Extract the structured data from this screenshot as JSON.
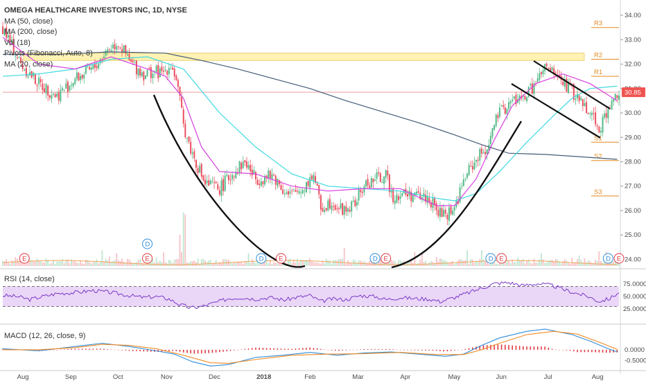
{
  "chart_data": {
    "type": "candlestick",
    "title": "OMEGA HEALTHCARE INVESTORS INC, 1D, NYSE",
    "indicators": [
      "MA (50, close)",
      "MA (200, close)",
      "Vol (18)",
      "Pivots (Fibonacci, Auto, 8)",
      "MA (20, close)"
    ],
    "x_labels": [
      "Aug",
      "Sep",
      "Oct",
      "Nov",
      "Dec",
      "2018",
      "Feb",
      "Mar",
      "Apr",
      "May",
      "Jun",
      "Jul",
      "Aug"
    ],
    "price_ticks": [
      "34.00",
      "33.00",
      "32.00",
      "31.00",
      "30.00",
      "29.00",
      "28.00",
      "27.00",
      "26.00",
      "25.00",
      "24.00"
    ],
    "ylim": [
      23.7,
      34.4
    ],
    "last_price": "30.85",
    "pivots": [
      {
        "label": "R3",
        "value": 33.5
      },
      {
        "label": "R2",
        "value": 32.2
      },
      {
        "label": "R1",
        "value": 31.5
      },
      {
        "label": "S1",
        "value": 28.8
      },
      {
        "label": "S2",
        "value": 28.05
      },
      {
        "label": "S3",
        "value": 26.6
      }
    ],
    "resistance_zone": [
      32.15,
      32.45
    ],
    "close_series": [
      [
        0,
        33.5
      ],
      [
        10,
        32.0
      ],
      [
        20,
        31.2
      ],
      [
        30,
        30.7
      ],
      [
        40,
        31.4
      ],
      [
        50,
        31.8
      ],
      [
        58,
        32.6
      ],
      [
        64,
        32.9
      ],
      [
        70,
        32.1
      ],
      [
        78,
        31.6
      ],
      [
        84,
        31.7
      ],
      [
        88,
        31.6
      ],
      [
        93,
        32.0
      ],
      [
        96,
        31.4
      ],
      [
        100,
        29.5
      ],
      [
        104,
        28.5
      ],
      [
        112,
        27.1
      ],
      [
        120,
        26.9
      ],
      [
        128,
        27.6
      ],
      [
        134,
        28.0
      ],
      [
        140,
        27.3
      ],
      [
        150,
        27.4
      ],
      [
        158,
        26.6
      ],
      [
        166,
        26.9
      ],
      [
        172,
        27.5
      ],
      [
        176,
        26.1
      ],
      [
        182,
        26.4
      ],
      [
        188,
        26.0
      ],
      [
        194,
        26.2
      ],
      [
        200,
        27.0
      ],
      [
        206,
        27.3
      ],
      [
        212,
        27.4
      ],
      [
        216,
        26.6
      ],
      [
        222,
        26.7
      ],
      [
        228,
        26.6
      ],
      [
        236,
        26.5
      ],
      [
        240,
        26.0
      ],
      [
        244,
        25.8
      ],
      [
        250,
        26.1
      ],
      [
        256,
        27.4
      ],
      [
        262,
        28.1
      ],
      [
        268,
        28.6
      ],
      [
        274,
        29.9
      ],
      [
        282,
        30.5
      ],
      [
        288,
        30.6
      ],
      [
        294,
        31.1
      ],
      [
        300,
        31.8
      ],
      [
        306,
        31.6
      ],
      [
        312,
        31.1
      ],
      [
        318,
        30.6
      ],
      [
        324,
        30.2
      ],
      [
        330,
        29.4
      ],
      [
        336,
        30.2
      ],
      [
        340,
        30.85
      ]
    ],
    "n_days": 341,
    "ma20": [
      [
        0,
        33.1
      ],
      [
        20,
        32.0
      ],
      [
        40,
        31.8
      ],
      [
        60,
        32.3
      ],
      [
        80,
        31.8
      ],
      [
        90,
        31.5
      ],
      [
        100,
        30.6
      ],
      [
        110,
        28.6
      ],
      [
        120,
        27.6
      ],
      [
        140,
        27.5
      ],
      [
        160,
        27.0
      ],
      [
        180,
        26.8
      ],
      [
        200,
        26.9
      ],
      [
        220,
        26.9
      ],
      [
        240,
        26.2
      ],
      [
        250,
        26.2
      ],
      [
        262,
        27.3
      ],
      [
        272,
        28.9
      ],
      [
        282,
        30.3
      ],
      [
        295,
        31.2
      ],
      [
        310,
        31.6
      ],
      [
        325,
        31.2
      ],
      [
        340,
        30.5
      ]
    ],
    "ma50": [
      [
        0,
        31.5
      ],
      [
        20,
        31.6
      ],
      [
        40,
        31.8
      ],
      [
        60,
        32.2
      ],
      [
        80,
        32.3
      ],
      [
        100,
        31.8
      ],
      [
        110,
        30.9
      ],
      [
        120,
        30.0
      ],
      [
        140,
        28.6
      ],
      [
        160,
        27.5
      ],
      [
        180,
        27.0
      ],
      [
        200,
        26.9
      ],
      [
        220,
        26.8
      ],
      [
        240,
        26.5
      ],
      [
        250,
        26.4
      ],
      [
        262,
        26.7
      ],
      [
        275,
        27.6
      ],
      [
        290,
        28.8
      ],
      [
        305,
        29.9
      ],
      [
        315,
        30.6
      ],
      [
        325,
        31.0
      ],
      [
        340,
        31.1
      ]
    ],
    "ma200": [
      [
        0,
        32.4
      ],
      [
        30,
        32.4
      ],
      [
        60,
        32.5
      ],
      [
        90,
        32.45
      ],
      [
        110,
        32.15
      ],
      [
        130,
        31.8
      ],
      [
        150,
        31.4
      ],
      [
        170,
        31.0
      ],
      [
        190,
        30.5
      ],
      [
        210,
        30.05
      ],
      [
        230,
        29.6
      ],
      [
        250,
        29.1
      ],
      [
        265,
        28.7
      ],
      [
        280,
        28.35
      ],
      [
        300,
        28.3
      ],
      [
        320,
        28.2
      ],
      [
        340,
        28.1
      ]
    ],
    "volume_profile": [
      2,
      3,
      2,
      4,
      3,
      2,
      3,
      5,
      3,
      2,
      3,
      4,
      2,
      3,
      2,
      3,
      2,
      6,
      4,
      3
    ],
    "events": [
      {
        "label": "E",
        "day": 12
      },
      {
        "label": "D",
        "day": 80
      },
      {
        "label": "E",
        "day": 80
      },
      {
        "label": "D",
        "day": 143
      },
      {
        "label": "E",
        "day": 154
      },
      {
        "label": "D",
        "day": 206
      },
      {
        "label": "E",
        "day": 212
      },
      {
        "label": "D",
        "day": 270
      },
      {
        "label": "E",
        "day": 276
      },
      {
        "label": "D",
        "day": 335
      },
      {
        "label": "E",
        "day": 341
      }
    ],
    "rsi": {
      "label": "RSI (14, close)",
      "ticks": [
        "75.0000",
        "50.0000",
        "25.0000"
      ],
      "overbought": 70,
      "oversold": 30,
      "series": [
        [
          0,
          52
        ],
        [
          8,
          50
        ],
        [
          15,
          44
        ],
        [
          22,
          50
        ],
        [
          30,
          56
        ],
        [
          40,
          58
        ],
        [
          50,
          62
        ],
        [
          60,
          58
        ],
        [
          70,
          52
        ],
        [
          78,
          48
        ],
        [
          85,
          50
        ],
        [
          92,
          45
        ],
        [
          98,
          34
        ],
        [
          104,
          27
        ],
        [
          110,
          30
        ],
        [
          118,
          38
        ],
        [
          125,
          46
        ],
        [
          132,
          48
        ],
        [
          140,
          45
        ],
        [
          148,
          48
        ],
        [
          156,
          43
        ],
        [
          162,
          48
        ],
        [
          170,
          52
        ],
        [
          176,
          40
        ],
        [
          182,
          45
        ],
        [
          190,
          44
        ],
        [
          198,
          52
        ],
        [
          206,
          50
        ],
        [
          212,
          44
        ],
        [
          220,
          48
        ],
        [
          228,
          46
        ],
        [
          236,
          45
        ],
        [
          242,
          40
        ],
        [
          250,
          48
        ],
        [
          258,
          58
        ],
        [
          266,
          68
        ],
        [
          272,
          76
        ],
        [
          280,
          78
        ],
        [
          288,
          72
        ],
        [
          296,
          76
        ],
        [
          304,
          72
        ],
        [
          312,
          62
        ],
        [
          318,
          56
        ],
        [
          324,
          50
        ],
        [
          330,
          40
        ],
        [
          336,
          46
        ],
        [
          340,
          56
        ]
      ]
    },
    "macd": {
      "label": "MACD (12, 26, close, 9)",
      "ticks": [
        "0.0000",
        "-0.5000"
      ],
      "macd_series": [
        [
          0,
          0.05
        ],
        [
          20,
          -0.05
        ],
        [
          40,
          0.15
        ],
        [
          55,
          0.3
        ],
        [
          70,
          0.15
        ],
        [
          85,
          -0.05
        ],
        [
          95,
          -0.2
        ],
        [
          105,
          -0.55
        ],
        [
          115,
          -0.75
        ],
        [
          125,
          -0.68
        ],
        [
          140,
          -0.35
        ],
        [
          155,
          -0.25
        ],
        [
          170,
          -0.12
        ],
        [
          185,
          -0.25
        ],
        [
          200,
          -0.15
        ],
        [
          215,
          -0.1
        ],
        [
          230,
          -0.2
        ],
        [
          245,
          -0.3
        ],
        [
          255,
          -0.2
        ],
        [
          265,
          0.2
        ],
        [
          275,
          0.55
        ],
        [
          290,
          0.85
        ],
        [
          300,
          0.95
        ],
        [
          315,
          0.7
        ],
        [
          325,
          0.4
        ],
        [
          335,
          0.05
        ],
        [
          340,
          -0.1
        ]
      ],
      "signal_series": [
        [
          0,
          0.0
        ],
        [
          20,
          0.0
        ],
        [
          40,
          0.1
        ],
        [
          55,
          0.25
        ],
        [
          70,
          0.2
        ],
        [
          85,
          0.05
        ],
        [
          100,
          -0.25
        ],
        [
          115,
          -0.6
        ],
        [
          125,
          -0.62
        ],
        [
          140,
          -0.45
        ],
        [
          160,
          -0.25
        ],
        [
          180,
          -0.2
        ],
        [
          200,
          -0.18
        ],
        [
          220,
          -0.12
        ],
        [
          240,
          -0.22
        ],
        [
          255,
          -0.22
        ],
        [
          265,
          0.0
        ],
        [
          275,
          0.3
        ],
        [
          290,
          0.7
        ],
        [
          305,
          0.85
        ],
        [
          318,
          0.72
        ],
        [
          330,
          0.35
        ],
        [
          340,
          0.02
        ]
      ],
      "ylim": [
        -0.8,
        1.05
      ]
    }
  },
  "colors": {
    "up": "#53b987",
    "down": "#eb4d5c",
    "ma20": "#d63fe0",
    "ma50": "#3cd8e0",
    "ma200": "#445b77",
    "pivot": "#e08a1e",
    "rsi": "#7a3ac7",
    "rsi_fill": "#ead6f7",
    "macd": "#2e8cd8",
    "signal": "#f08a24",
    "hist_pos": "#e0393f",
    "hist_neg": "#e0393f",
    "zone": "#fff2b3",
    "last_price_bg": "#ef5350",
    "event_D": "#2e8cd8",
    "event_E": "#e0393f"
  }
}
